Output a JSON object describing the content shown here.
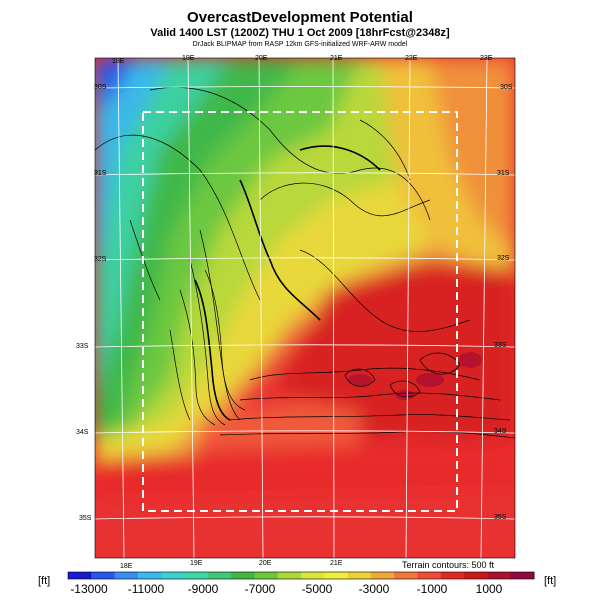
{
  "header": {
    "title": "OvercastDevelopment Potential",
    "subtitle": "Valid 1400 LST (1200Z) THU 1 Oct 2009 [18hrFcst@2348z]",
    "source": "DrJack BLIPMAP from RASP 12km GFS-initialized WRF-ARW model"
  },
  "map": {
    "lon_labels_top": [
      "18E",
      "19E",
      "20E",
      "21E",
      "22E",
      "23E"
    ],
    "lon_labels_bottom": [
      "18E",
      "19E",
      "20E",
      "21E"
    ],
    "lat_labels_right": [
      "30S",
      "31S",
      "32S",
      "33S",
      "34S",
      "35S"
    ],
    "lat_labels_left": [
      "30S",
      "31S",
      "32S",
      "33S",
      "34S",
      "35S"
    ],
    "terrain_note": "Terrain contours: 500 ft"
  },
  "colorbar": {
    "unit": "[ft]",
    "tick_labels": [
      "-13000",
      "-11000",
      "-9000",
      "-7000",
      "-5000",
      "-3000",
      "-1000",
      "1000"
    ],
    "colors": [
      "#1a1ad0",
      "#2f55e8",
      "#3a8ef0",
      "#3ab8f0",
      "#3ed0d0",
      "#3ed8a8",
      "#40c878",
      "#40b840",
      "#6cc83a",
      "#a8d83a",
      "#d8e83a",
      "#f0f03a",
      "#f0d03a",
      "#f0a83a",
      "#f0783a",
      "#f04a3a",
      "#e02828",
      "#c81818",
      "#b01030",
      "#900a40"
    ]
  }
}
